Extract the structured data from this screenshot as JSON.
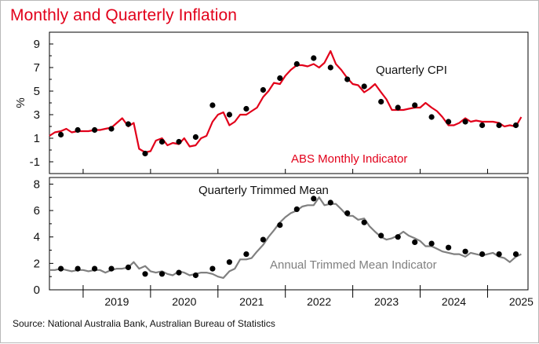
{
  "title": "Monthly and Quarterly Inflation",
  "source": "Source: National Australia Bank, Australian Bureau of Statistics",
  "chart_data": [
    {
      "type": "line",
      "panel": "top",
      "ylabel": "%",
      "ylim": [
        -2,
        10
      ],
      "yticks": [
        -1,
        1,
        3,
        5,
        7,
        9
      ],
      "xlim": [
        2018.5,
        2025.6
      ],
      "series": [
        {
          "name": "ABS Monthly Indicator",
          "color": "#e2001a",
          "style": "line",
          "x": [
            2018.5,
            2018.58,
            2018.67,
            2018.75,
            2018.83,
            2018.92,
            2019.0,
            2019.08,
            2019.17,
            2019.25,
            2019.33,
            2019.42,
            2019.5,
            2019.58,
            2019.67,
            2019.75,
            2019.83,
            2019.92,
            2020.0,
            2020.08,
            2020.17,
            2020.25,
            2020.33,
            2020.42,
            2020.5,
            2020.58,
            2020.67,
            2020.75,
            2020.83,
            2020.92,
            2021.0,
            2021.08,
            2021.17,
            2021.25,
            2021.33,
            2021.42,
            2021.5,
            2021.58,
            2021.67,
            2021.75,
            2021.83,
            2021.92,
            2022.0,
            2022.08,
            2022.17,
            2022.25,
            2022.33,
            2022.42,
            2022.5,
            2022.58,
            2022.67,
            2022.75,
            2022.83,
            2022.92,
            2023.0,
            2023.08,
            2023.17,
            2023.25,
            2023.33,
            2023.42,
            2023.5,
            2023.58,
            2023.67,
            2023.75,
            2023.83,
            2023.92,
            2024.0,
            2024.08,
            2024.17,
            2024.25,
            2024.33,
            2024.42,
            2024.5,
            2024.58,
            2024.67,
            2024.75,
            2024.83,
            2024.92,
            2025.0,
            2025.08,
            2025.17,
            2025.25,
            2025.33,
            2025.42,
            2025.5
          ],
          "y": [
            1.2,
            1.5,
            1.6,
            1.8,
            1.5,
            1.6,
            1.6,
            1.6,
            1.7,
            1.7,
            1.8,
            1.9,
            2.3,
            2.7,
            2.0,
            2.3,
            0.1,
            -0.2,
            -0.1,
            0.8,
            1.0,
            0.4,
            0.6,
            0.5,
            1.0,
            0.3,
            0.4,
            1.0,
            1.2,
            2.4,
            3.0,
            3.2,
            2.1,
            2.4,
            3.0,
            3.0,
            3.3,
            3.6,
            4.5,
            5.0,
            5.7,
            5.6,
            6.3,
            6.8,
            7.2,
            7.2,
            7.1,
            7.3,
            7.0,
            7.4,
            8.4,
            7.3,
            6.8,
            6.1,
            5.6,
            5.5,
            4.9,
            5.2,
            5.6,
            4.9,
            4.3,
            3.4,
            3.4,
            3.4,
            3.5,
            3.6,
            3.6,
            4.0,
            3.6,
            3.3,
            2.8,
            2.1,
            2.1,
            2.3,
            2.7,
            2.4,
            2.5,
            2.4,
            2.4,
            2.4,
            2.3,
            2.0,
            2.1,
            2.0,
            2.8
          ]
        },
        {
          "name": "Quarterly CPI",
          "color": "#000000",
          "style": "dots",
          "x": [
            2018.67,
            2018.92,
            2019.17,
            2019.42,
            2019.67,
            2019.92,
            2020.17,
            2020.42,
            2020.67,
            2020.92,
            2021.17,
            2021.42,
            2021.67,
            2021.92,
            2022.17,
            2022.42,
            2022.67,
            2022.92,
            2023.17,
            2023.42,
            2023.67,
            2023.92,
            2024.17,
            2024.42,
            2024.67,
            2024.92,
            2025.17,
            2025.42
          ],
          "y": [
            1.3,
            1.7,
            1.7,
            1.8,
            2.2,
            -0.3,
            0.7,
            0.7,
            1.1,
            3.8,
            3.0,
            3.5,
            5.1,
            6.1,
            7.3,
            7.8,
            7.0,
            6.0,
            5.4,
            4.1,
            3.6,
            3.8,
            2.8,
            2.4,
            2.4,
            2.1,
            2.1,
            2.1
          ]
        }
      ],
      "annotations": [
        "Quarterly CPI",
        "ABS Monthly Indicator"
      ]
    },
    {
      "type": "line",
      "panel": "bottom",
      "ylim": [
        0,
        8.5
      ],
      "yticks": [
        0,
        2,
        4,
        6,
        8
      ],
      "xlim": [
        2018.5,
        2025.6
      ],
      "xticks": [
        "2019",
        "2020",
        "2021",
        "2022",
        "2023",
        "2024",
        "2025"
      ],
      "series": [
        {
          "name": "Annual Trimmed Mean Indicator",
          "color": "#808080",
          "style": "line",
          "x": [
            2018.5,
            2018.58,
            2018.67,
            2018.75,
            2018.83,
            2018.92,
            2019.0,
            2019.08,
            2019.17,
            2019.25,
            2019.33,
            2019.42,
            2019.5,
            2019.58,
            2019.67,
            2019.75,
            2019.83,
            2019.92,
            2020.0,
            2020.08,
            2020.17,
            2020.25,
            2020.33,
            2020.42,
            2020.5,
            2020.58,
            2020.67,
            2020.75,
            2020.83,
            2020.92,
            2021.0,
            2021.08,
            2021.17,
            2021.25,
            2021.33,
            2021.42,
            2021.5,
            2021.58,
            2021.67,
            2021.75,
            2021.83,
            2021.92,
            2022.0,
            2022.08,
            2022.17,
            2022.25,
            2022.33,
            2022.42,
            2022.5,
            2022.58,
            2022.67,
            2022.75,
            2022.83,
            2022.92,
            2023.0,
            2023.08,
            2023.17,
            2023.25,
            2023.33,
            2023.42,
            2023.5,
            2023.58,
            2023.67,
            2023.75,
            2023.83,
            2023.92,
            2024.0,
            2024.08,
            2024.17,
            2024.25,
            2024.33,
            2024.42,
            2024.5,
            2024.58,
            2024.67,
            2024.75,
            2024.83,
            2024.92,
            2025.0,
            2025.08,
            2025.17,
            2025.25,
            2025.33,
            2025.42,
            2025.5
          ],
          "y": [
            1.5,
            1.5,
            1.6,
            1.5,
            1.4,
            1.5,
            1.5,
            1.4,
            1.5,
            1.5,
            1.3,
            1.5,
            1.6,
            1.6,
            1.7,
            2.1,
            1.6,
            1.8,
            1.4,
            1.3,
            1.4,
            1.2,
            1.1,
            1.4,
            1.3,
            1.1,
            1.2,
            1.3,
            1.3,
            1.2,
            1.0,
            0.9,
            1.4,
            1.6,
            2.3,
            2.3,
            2.4,
            2.9,
            3.4,
            4.0,
            4.5,
            5.1,
            5.5,
            5.8,
            6.0,
            6.3,
            6.4,
            6.4,
            7.0,
            6.4,
            6.5,
            6.5,
            6.1,
            5.6,
            5.6,
            5.3,
            5.4,
            4.8,
            4.4,
            4.0,
            3.8,
            3.9,
            4.1,
            4.4,
            4.1,
            3.9,
            3.7,
            3.3,
            3.3,
            3.1,
            2.9,
            2.8,
            2.7,
            2.7,
            2.5,
            2.8,
            2.7,
            2.6,
            2.7,
            2.8,
            2.5,
            2.4,
            2.1,
            2.5,
            2.7
          ]
        },
        {
          "name": "Quarterly Trimmed Mean",
          "color": "#000000",
          "style": "dots",
          "x": [
            2018.67,
            2018.92,
            2019.17,
            2019.42,
            2019.67,
            2019.92,
            2020.17,
            2020.42,
            2020.67,
            2020.92,
            2021.17,
            2021.42,
            2021.67,
            2021.92,
            2022.17,
            2022.42,
            2022.67,
            2022.92,
            2023.17,
            2023.42,
            2023.67,
            2023.92,
            2024.17,
            2024.42,
            2024.67,
            2024.92,
            2025.17,
            2025.42
          ],
          "y": [
            1.6,
            1.6,
            1.6,
            1.6,
            1.7,
            1.2,
            1.2,
            1.3,
            1.1,
            1.6,
            2.1,
            2.7,
            3.8,
            4.9,
            6.1,
            6.9,
            6.6,
            5.8,
            5.1,
            4.1,
            4.0,
            3.6,
            3.5,
            3.2,
            2.9,
            2.7,
            2.7,
            2.7
          ]
        }
      ],
      "annotations": [
        "Quarterly Trimmed Mean",
        "Annual Trimmed Mean Indicator"
      ]
    }
  ]
}
